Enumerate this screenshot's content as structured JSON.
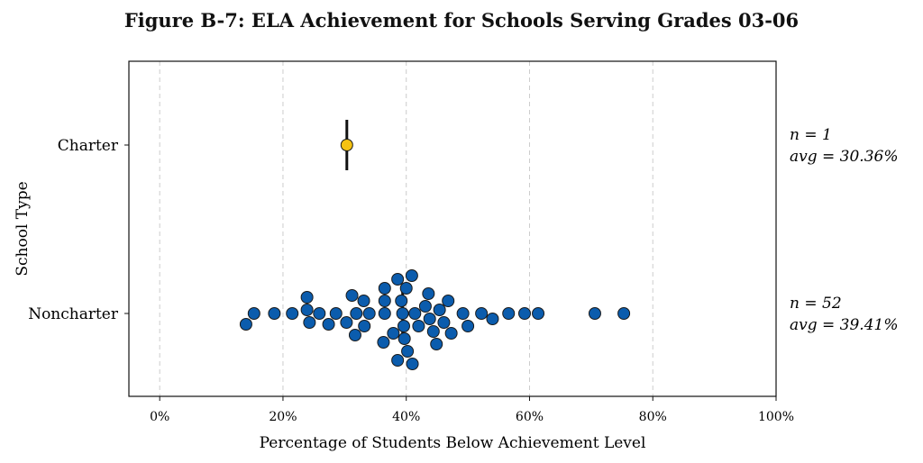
{
  "chart_data": {
    "type": "scatter",
    "subtype": "beeswarm",
    "title": "Figure B-7: ELA Achievement for Schools Serving Grades 03-06",
    "xlabel": "Percentage of Students Below Achievement Level",
    "ylabel": "School Type",
    "xlim": [
      -5,
      100
    ],
    "xticks": [
      0,
      20,
      40,
      60,
      80,
      100
    ],
    "xtick_labels": [
      "0%",
      "20%",
      "40%",
      "60%",
      "80%",
      "100%"
    ],
    "grid": "vertical dashed",
    "categories": [
      "Charter",
      "Noncharter"
    ],
    "series": [
      {
        "name": "Charter",
        "color": "#F5C211",
        "n_label": "n = 1",
        "avg_label": "avg = 30.36%",
        "mean": 30.36,
        "values": [
          30.36
        ]
      },
      {
        "name": "Noncharter",
        "color": "#0B5CAD",
        "n_label": "n = 52",
        "avg_label": "avg = 39.41%",
        "mean": 39.41,
        "values": [
          14.0,
          15.3,
          18.6,
          21.5,
          23.9,
          24.3,
          23.9,
          25.9,
          27.4,
          28.6,
          30.3,
          31.2,
          31.9,
          31.7,
          33.1,
          34.0,
          33.2,
          36.5,
          36.5,
          36.3,
          36.5,
          37.9,
          38.6,
          38.6,
          39.2,
          39.4,
          39.7,
          40.2,
          39.6,
          40.0,
          41.0,
          40.9,
          41.4,
          42.0,
          43.6,
          43.1,
          43.8,
          44.4,
          44.9,
          45.4,
          46.1,
          46.8,
          47.3,
          49.2,
          50.0,
          52.2,
          54.0,
          56.6,
          59.2,
          61.4,
          70.6,
          75.3
        ]
      }
    ]
  }
}
